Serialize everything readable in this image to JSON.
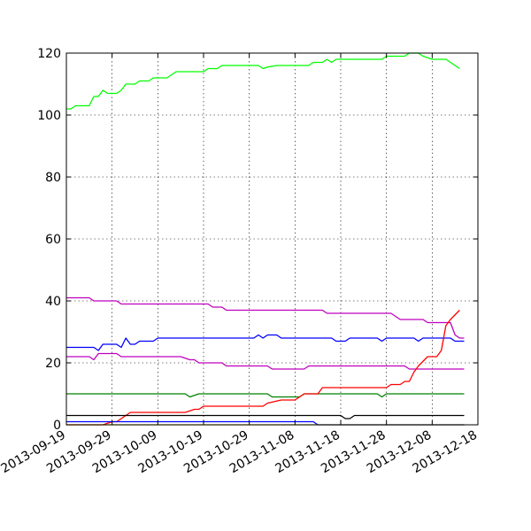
{
  "chart_data": {
    "type": "line",
    "title": "",
    "xlabel": "",
    "ylabel": "",
    "xlim": [
      "2013-09-19",
      "2013-12-18"
    ],
    "ylim": [
      0,
      120
    ],
    "grid": true,
    "x_ticks": [
      "2013-09-19",
      "2013-09-29",
      "2013-10-09",
      "2013-10-19",
      "2013-10-29",
      "2013-11-08",
      "2013-11-18",
      "2013-11-28",
      "2013-12-08",
      "2013-12-18"
    ],
    "y_ticks": [
      0,
      20,
      40,
      60,
      80,
      100,
      120
    ],
    "series": [
      {
        "color": "#00ff00",
        "points": [
          [
            "2013-09-19",
            102
          ],
          [
            "2013-09-20",
            102
          ],
          [
            "2013-09-21",
            103
          ],
          [
            "2013-09-24",
            103
          ],
          [
            "2013-09-25",
            106
          ],
          [
            "2013-09-26",
            106
          ],
          [
            "2013-09-27",
            108
          ],
          [
            "2013-09-28",
            107
          ],
          [
            "2013-09-30",
            107
          ],
          [
            "2013-10-01",
            108
          ],
          [
            "2013-10-02",
            110
          ],
          [
            "2013-10-04",
            110
          ],
          [
            "2013-10-05",
            111
          ],
          [
            "2013-10-07",
            111
          ],
          [
            "2013-10-08",
            112
          ],
          [
            "2013-10-11",
            112
          ],
          [
            "2013-10-12",
            113
          ],
          [
            "2013-10-13",
            114
          ],
          [
            "2013-10-19",
            114
          ],
          [
            "2013-10-20",
            115
          ],
          [
            "2013-10-22",
            115
          ],
          [
            "2013-10-23",
            116
          ],
          [
            "2013-10-31",
            116
          ],
          [
            "2013-11-01",
            115
          ],
          [
            "2013-11-02",
            115.5
          ],
          [
            "2013-11-04",
            116
          ],
          [
            "2013-11-11",
            116
          ],
          [
            "2013-11-12",
            117
          ],
          [
            "2013-11-14",
            117
          ],
          [
            "2013-11-15",
            118
          ],
          [
            "2013-11-16",
            117
          ],
          [
            "2013-11-17",
            118
          ],
          [
            "2013-11-27",
            118
          ],
          [
            "2013-11-28",
            119
          ],
          [
            "2013-12-02",
            119
          ],
          [
            "2013-12-03",
            120
          ],
          [
            "2013-12-05",
            120
          ],
          [
            "2013-12-06",
            119
          ],
          [
            "2013-12-08",
            118
          ],
          [
            "2013-12-11",
            118
          ],
          [
            "2013-12-12",
            117
          ],
          [
            "2013-12-14",
            115
          ]
        ]
      },
      {
        "color": "#bf00bf",
        "points": [
          [
            "2013-09-19",
            41
          ],
          [
            "2013-09-24",
            41
          ],
          [
            "2013-09-25",
            40
          ],
          [
            "2013-09-30",
            40
          ],
          [
            "2013-10-01",
            39
          ],
          [
            "2013-10-20",
            39
          ],
          [
            "2013-10-21",
            38
          ],
          [
            "2013-10-23",
            38
          ],
          [
            "2013-10-24",
            37
          ],
          [
            "2013-11-14",
            37
          ],
          [
            "2013-11-15",
            36
          ],
          [
            "2013-11-29",
            36
          ],
          [
            "2013-12-01",
            34
          ],
          [
            "2013-12-06",
            34
          ],
          [
            "2013-12-07",
            33
          ],
          [
            "2013-12-12",
            33
          ],
          [
            "2013-12-13",
            29
          ],
          [
            "2013-12-14",
            28
          ],
          [
            "2013-12-15",
            28
          ]
        ]
      },
      {
        "color": "#0000ff",
        "points": [
          [
            "2013-09-19",
            25
          ],
          [
            "2013-09-25",
            25
          ],
          [
            "2013-09-26",
            24
          ],
          [
            "2013-09-27",
            26
          ],
          [
            "2013-09-30",
            26
          ],
          [
            "2013-10-01",
            25
          ],
          [
            "2013-10-02",
            28
          ],
          [
            "2013-10-03",
            26
          ],
          [
            "2013-10-04",
            26
          ],
          [
            "2013-10-05",
            27
          ],
          [
            "2013-10-08",
            27
          ],
          [
            "2013-10-09",
            28
          ],
          [
            "2013-10-30",
            28
          ],
          [
            "2013-10-31",
            29
          ],
          [
            "2013-11-01",
            28
          ],
          [
            "2013-11-02",
            29
          ],
          [
            "2013-11-04",
            29
          ],
          [
            "2013-11-05",
            28
          ],
          [
            "2013-11-16",
            28
          ],
          [
            "2013-11-17",
            27
          ],
          [
            "2013-11-19",
            27
          ],
          [
            "2013-11-20",
            28
          ],
          [
            "2013-11-26",
            28
          ],
          [
            "2013-11-27",
            27
          ],
          [
            "2013-11-28",
            28
          ],
          [
            "2013-12-04",
            28
          ],
          [
            "2013-12-05",
            27
          ],
          [
            "2013-12-06",
            28
          ],
          [
            "2013-12-12",
            28
          ],
          [
            "2013-12-13",
            27
          ],
          [
            "2013-12-15",
            27
          ]
        ]
      },
      {
        "color": "#bf00bf",
        "points": [
          [
            "2013-09-19",
            22
          ],
          [
            "2013-09-24",
            22
          ],
          [
            "2013-09-25",
            21
          ],
          [
            "2013-09-26",
            23
          ],
          [
            "2013-09-30",
            23
          ],
          [
            "2013-10-01",
            22
          ],
          [
            "2013-10-14",
            22
          ],
          [
            "2013-10-16",
            21
          ],
          [
            "2013-10-17",
            21
          ],
          [
            "2013-10-18",
            20
          ],
          [
            "2013-10-23",
            20
          ],
          [
            "2013-10-24",
            19
          ],
          [
            "2013-11-02",
            19
          ],
          [
            "2013-11-03",
            18
          ],
          [
            "2013-11-10",
            18
          ],
          [
            "2013-11-11",
            19
          ],
          [
            "2013-12-02",
            19
          ],
          [
            "2013-12-03",
            18
          ],
          [
            "2013-12-15",
            18
          ]
        ]
      },
      {
        "color": "#008000",
        "points": [
          [
            "2013-09-19",
            10
          ],
          [
            "2013-10-15",
            10
          ],
          [
            "2013-10-16",
            9
          ],
          [
            "2013-10-18",
            10
          ],
          [
            "2013-11-02",
            10
          ],
          [
            "2013-11-03",
            9
          ],
          [
            "2013-11-09",
            9
          ],
          [
            "2013-11-10",
            10
          ],
          [
            "2013-11-26",
            10
          ],
          [
            "2013-11-27",
            9
          ],
          [
            "2013-11-28",
            10
          ],
          [
            "2013-12-15",
            10
          ]
        ]
      },
      {
        "color": "#ff0000",
        "points": [
          [
            "2013-09-19",
            0
          ],
          [
            "2013-09-27",
            0
          ],
          [
            "2013-09-28",
            0.5
          ],
          [
            "2013-09-29",
            1
          ],
          [
            "2013-09-30",
            1
          ],
          [
            "2013-10-02",
            3
          ],
          [
            "2013-10-03",
            4
          ],
          [
            "2013-10-15",
            4
          ],
          [
            "2013-10-17",
            5
          ],
          [
            "2013-10-18",
            5
          ],
          [
            "2013-10-19",
            6
          ],
          [
            "2013-11-01",
            6
          ],
          [
            "2013-11-02",
            7
          ],
          [
            "2013-11-05",
            8
          ],
          [
            "2013-11-08",
            8
          ],
          [
            "2013-11-09",
            9
          ],
          [
            "2013-11-10",
            10
          ],
          [
            "2013-11-13",
            10
          ],
          [
            "2013-11-14",
            12
          ],
          [
            "2013-11-28",
            12
          ],
          [
            "2013-11-29",
            13
          ],
          [
            "2013-12-01",
            13
          ],
          [
            "2013-12-02",
            14
          ],
          [
            "2013-12-03",
            14
          ],
          [
            "2013-12-04",
            17
          ],
          [
            "2013-12-05",
            19
          ],
          [
            "2013-12-07",
            22
          ],
          [
            "2013-12-09",
            22
          ],
          [
            "2013-12-10",
            24
          ],
          [
            "2013-12-11",
            32
          ],
          [
            "2013-12-12",
            34
          ],
          [
            "2013-12-14",
            37
          ]
        ]
      },
      {
        "color": "#000000",
        "points": [
          [
            "2013-09-19",
            3
          ],
          [
            "2013-11-18",
            3
          ],
          [
            "2013-11-19",
            2
          ],
          [
            "2013-11-20",
            2
          ],
          [
            "2013-11-21",
            3
          ],
          [
            "2013-12-15",
            3
          ]
        ]
      },
      {
        "color": "#0000ff",
        "points": [
          [
            "2013-09-19",
            1
          ],
          [
            "2013-11-12",
            1
          ],
          [
            "2013-11-13",
            0
          ],
          [
            "2013-12-15",
            0
          ]
        ]
      },
      {
        "color": "#bfbf00",
        "points": [
          [
            "2013-09-19",
            0
          ],
          [
            "2013-12-15",
            0
          ]
        ]
      }
    ]
  }
}
